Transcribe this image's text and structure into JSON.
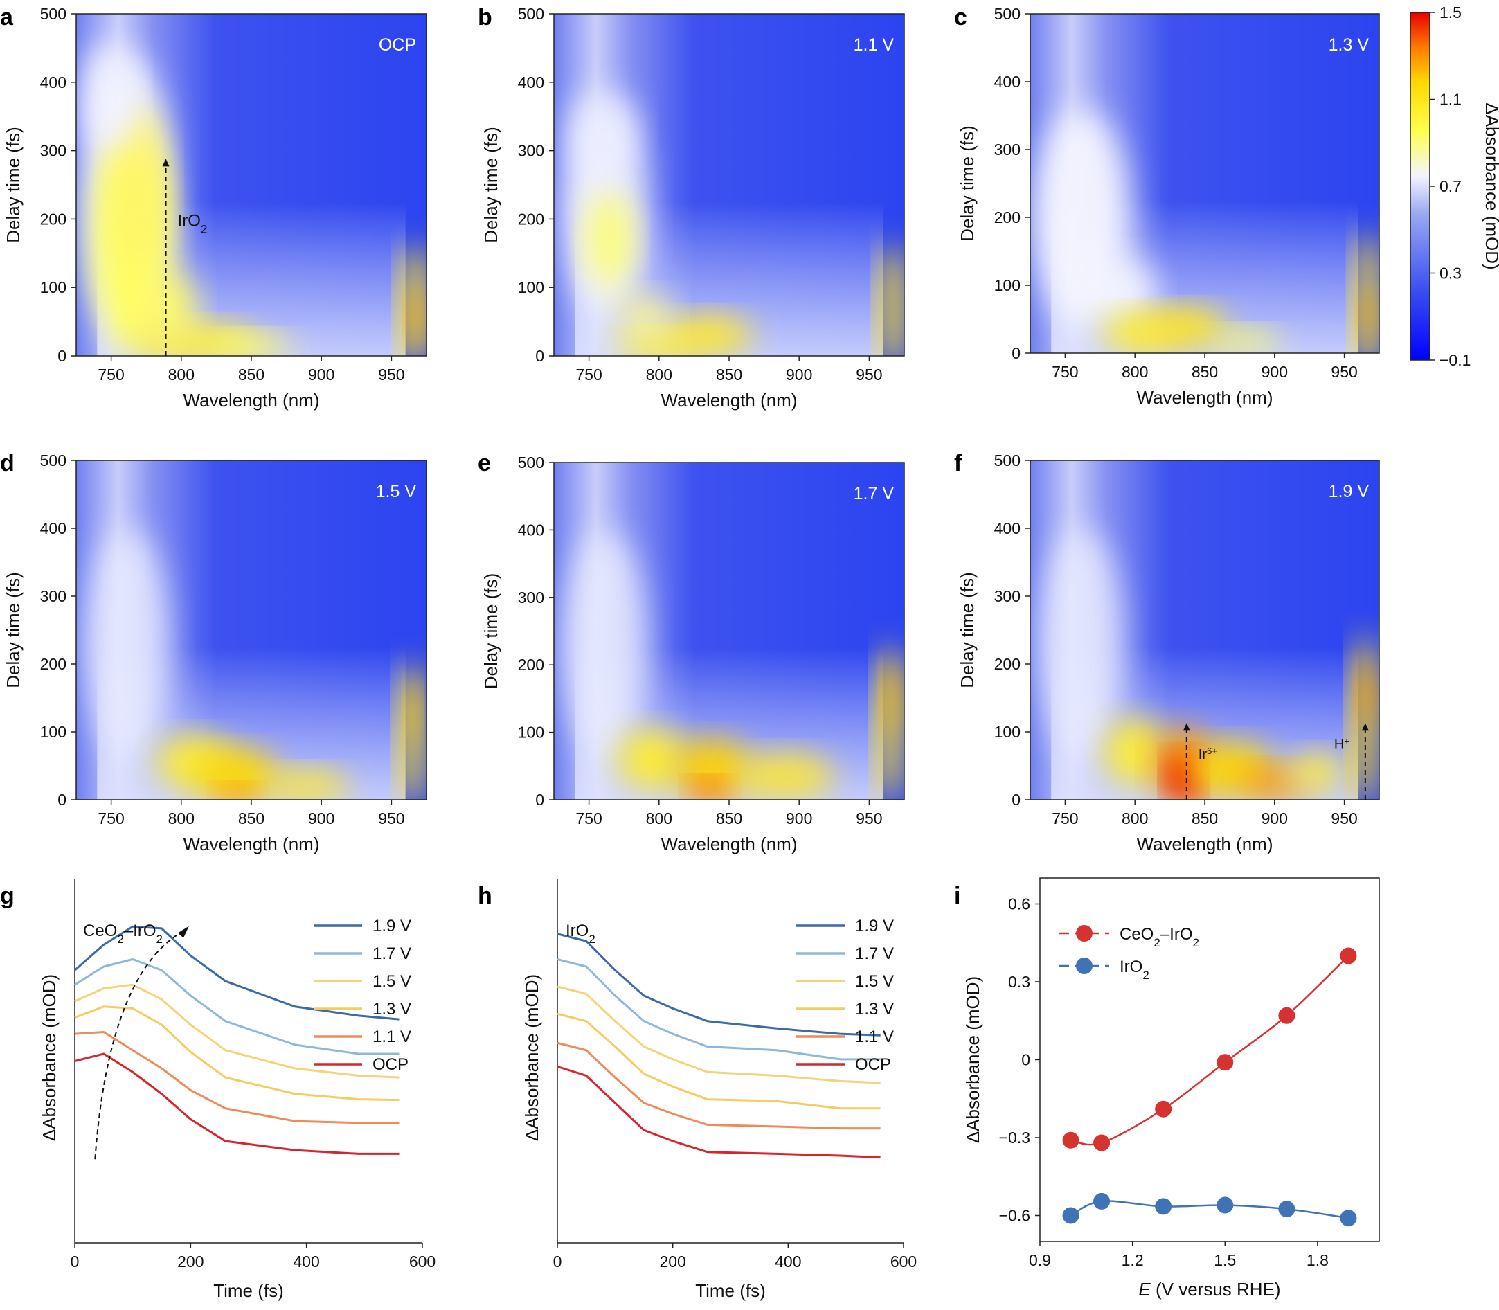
{
  "colors": {
    "series_1_9": "#3b6aa8",
    "series_1_7": "#8fb8d8",
    "series_1_5": "#f2d47a",
    "series_1_3": "#f5cc62",
    "series_1_1": "#ef8a5a",
    "series_ocp": "#d6262b",
    "ceo2_iro2": "#d6322f",
    "iro2_marker": "#3f73b5",
    "colormap": [
      "#0000ff",
      "#3a4ff0",
      "#8fa0f0",
      "#f4f4ff",
      "#ffff4a",
      "#ffd800",
      "#ff7a00",
      "#e80000"
    ]
  },
  "chart_data": [
    {
      "panel": "a",
      "type": "heatmap",
      "label": "OCP",
      "xlabel": "Wavelength (nm)",
      "ylabel": "Delay time (fs)",
      "xlim": [
        725,
        975
      ],
      "ylim": [
        0,
        500
      ],
      "xticks": [
        "750",
        "800",
        "850",
        "900",
        "950"
      ],
      "yticks": [
        "0",
        "100",
        "200",
        "300",
        "400",
        "500"
      ],
      "annotations": [
        {
          "text": "IrO",
          "sub": "2",
          "arrow_x": 789,
          "arrow_from": 0,
          "arrow_to": 285
        }
      ]
    },
    {
      "panel": "b",
      "type": "heatmap",
      "label": "1.1 V",
      "xlabel": "Wavelength (nm)",
      "ylabel": "Delay time (fs)",
      "xlim": [
        725,
        975
      ],
      "ylim": [
        0,
        500
      ],
      "xticks": [
        "750",
        "800",
        "850",
        "900",
        "950"
      ],
      "yticks": [
        "0",
        "100",
        "200",
        "300",
        "400",
        "500"
      ]
    },
    {
      "panel": "c",
      "type": "heatmap",
      "label": "1.3 V",
      "xlabel": "Wavelength (nm)",
      "ylabel": "Delay time (fs)",
      "xlim": [
        725,
        975
      ],
      "ylim": [
        0,
        500
      ],
      "xticks": [
        "750",
        "800",
        "850",
        "900",
        "950"
      ],
      "yticks": [
        "0",
        "100",
        "200",
        "300",
        "400",
        "500"
      ],
      "colorbar": {
        "label": "ΔAbsorbance (mOD)",
        "min": -0.1,
        "max": 1.5,
        "ticks": [
          "−0.1",
          "0.3",
          "0.7",
          "1.1",
          "1.5"
        ]
      }
    },
    {
      "panel": "d",
      "type": "heatmap",
      "label": "1.5 V",
      "xlabel": "Wavelength (nm)",
      "ylabel": "Delay time (fs)",
      "xlim": [
        725,
        975
      ],
      "ylim": [
        0,
        500
      ],
      "xticks": [
        "750",
        "800",
        "850",
        "900",
        "950"
      ],
      "yticks": [
        "0",
        "100",
        "200",
        "300",
        "400",
        "500"
      ]
    },
    {
      "panel": "e",
      "type": "heatmap",
      "label": "1.7 V",
      "xlabel": "Wavelength (nm)",
      "ylabel": "Delay time (fs)",
      "xlim": [
        725,
        975
      ],
      "ylim": [
        0,
        500
      ],
      "xticks": [
        "750",
        "800",
        "850",
        "900",
        "950"
      ],
      "yticks": [
        "0",
        "100",
        "200",
        "300",
        "400",
        "500"
      ]
    },
    {
      "panel": "f",
      "type": "heatmap",
      "label": "1.9 V",
      "xlabel": "Wavelength (nm)",
      "ylabel": "Delay time (fs)",
      "xlim": [
        725,
        975
      ],
      "ylim": [
        0,
        500
      ],
      "xticks": [
        "750",
        "800",
        "850",
        "900",
        "950"
      ],
      "yticks": [
        "0",
        "100",
        "200",
        "300",
        "400",
        "500"
      ],
      "annotations": [
        {
          "text": "Ir",
          "sup": "6+",
          "arrow_x": 837,
          "arrow_from": 0,
          "arrow_to": 110
        },
        {
          "text": "H",
          "sup": "+",
          "arrow_x": 965,
          "arrow_from": 0,
          "arrow_to": 110
        }
      ]
    },
    {
      "panel": "g",
      "type": "line",
      "inset_label": "CeO",
      "inset_sub": "2",
      "inset_rest": "–IrO",
      "inset_sub2": "2",
      "xlabel": "Time (fs)",
      "ylabel": "ΔAbsorbance (mOD)",
      "xlim": [
        0,
        600
      ],
      "ylim": [
        0,
        1
      ],
      "xticks": [
        "0",
        "200",
        "400",
        "600"
      ],
      "x": [
        0,
        50,
        100,
        150,
        200,
        260,
        380,
        490,
        560
      ],
      "series": [
        {
          "name": "1.9 V",
          "values": [
            0.75,
            0.82,
            0.87,
            0.865,
            0.79,
            0.72,
            0.65,
            0.625,
            0.615
          ]
        },
        {
          "name": "1.7 V",
          "values": [
            0.71,
            0.76,
            0.78,
            0.75,
            0.68,
            0.61,
            0.545,
            0.52,
            0.52
          ]
        },
        {
          "name": "1.5 V",
          "values": [
            0.665,
            0.7,
            0.71,
            0.67,
            0.6,
            0.53,
            0.48,
            0.46,
            0.455
          ]
        },
        {
          "name": "1.3 V",
          "values": [
            0.62,
            0.65,
            0.645,
            0.6,
            0.525,
            0.455,
            0.41,
            0.395,
            0.393
          ]
        },
        {
          "name": "1.1 V",
          "values": [
            0.575,
            0.58,
            0.53,
            0.48,
            0.42,
            0.37,
            0.335,
            0.33,
            0.33
          ]
        },
        {
          "name": "OCP",
          "values": [
            0.5,
            0.52,
            0.47,
            0.41,
            0.34,
            0.28,
            0.255,
            0.245,
            0.245
          ]
        }
      ],
      "arrow": {
        "from": [
          35,
          0.23
        ],
        "to": [
          190,
          0.86
        ]
      }
    },
    {
      "panel": "h",
      "type": "line",
      "inset_label": "IrO",
      "inset_sub": "2",
      "xlabel": "Time (fs)",
      "ylabel": "ΔAbsorbance (mOD)",
      "xlim": [
        0,
        600
      ],
      "ylim": [
        0,
        1
      ],
      "xticks": [
        "0",
        "200",
        "400",
        "600"
      ],
      "x": [
        0,
        50,
        100,
        150,
        200,
        260,
        380,
        490,
        560
      ],
      "series": [
        {
          "name": "1.9 V",
          "values": [
            0.85,
            0.83,
            0.75,
            0.68,
            0.645,
            0.61,
            0.59,
            0.575,
            0.571
          ]
        },
        {
          "name": "1.7 V",
          "values": [
            0.78,
            0.76,
            0.68,
            0.61,
            0.575,
            0.54,
            0.53,
            0.505,
            0.505
          ]
        },
        {
          "name": "1.5 V",
          "values": [
            0.705,
            0.685,
            0.61,
            0.54,
            0.505,
            0.47,
            0.46,
            0.445,
            0.44
          ]
        },
        {
          "name": "1.3 V",
          "values": [
            0.63,
            0.61,
            0.54,
            0.465,
            0.43,
            0.395,
            0.39,
            0.37,
            0.37
          ]
        },
        {
          "name": "1.1 V",
          "values": [
            0.55,
            0.53,
            0.455,
            0.385,
            0.355,
            0.325,
            0.32,
            0.315,
            0.315
          ]
        },
        {
          "name": "OCP",
          "values": [
            0.485,
            0.46,
            0.385,
            0.31,
            0.28,
            0.25,
            0.245,
            0.24,
            0.235
          ]
        }
      ]
    },
    {
      "panel": "i",
      "type": "line",
      "xlabel_italic": "E",
      "xlabel": " (V versus RHE)",
      "ylabel": "ΔAbsorbance (mOD)",
      "xlim": [
        0.9,
        2.0
      ],
      "ylim": [
        -0.7,
        0.7
      ],
      "xticks": [
        "0.9",
        "1.2",
        "1.5",
        "1.8"
      ],
      "yticks": [
        "−0.6",
        "−0.3",
        "0",
        "0.3",
        "0.6"
      ],
      "x": [
        1.0,
        1.1,
        1.3,
        1.5,
        1.7,
        1.9
      ],
      "series": [
        {
          "name": "CeO2–IrO2",
          "label": "CeO",
          "sub": "2",
          "rest": "–IrO",
          "sub2": "2",
          "values": [
            -0.31,
            -0.32,
            -0.19,
            -0.01,
            0.17,
            0.4
          ]
        },
        {
          "name": "IrO2",
          "label": "IrO",
          "sub": "2",
          "values": [
            -0.6,
            -0.545,
            -0.565,
            -0.56,
            -0.575,
            -0.61
          ]
        }
      ]
    }
  ]
}
